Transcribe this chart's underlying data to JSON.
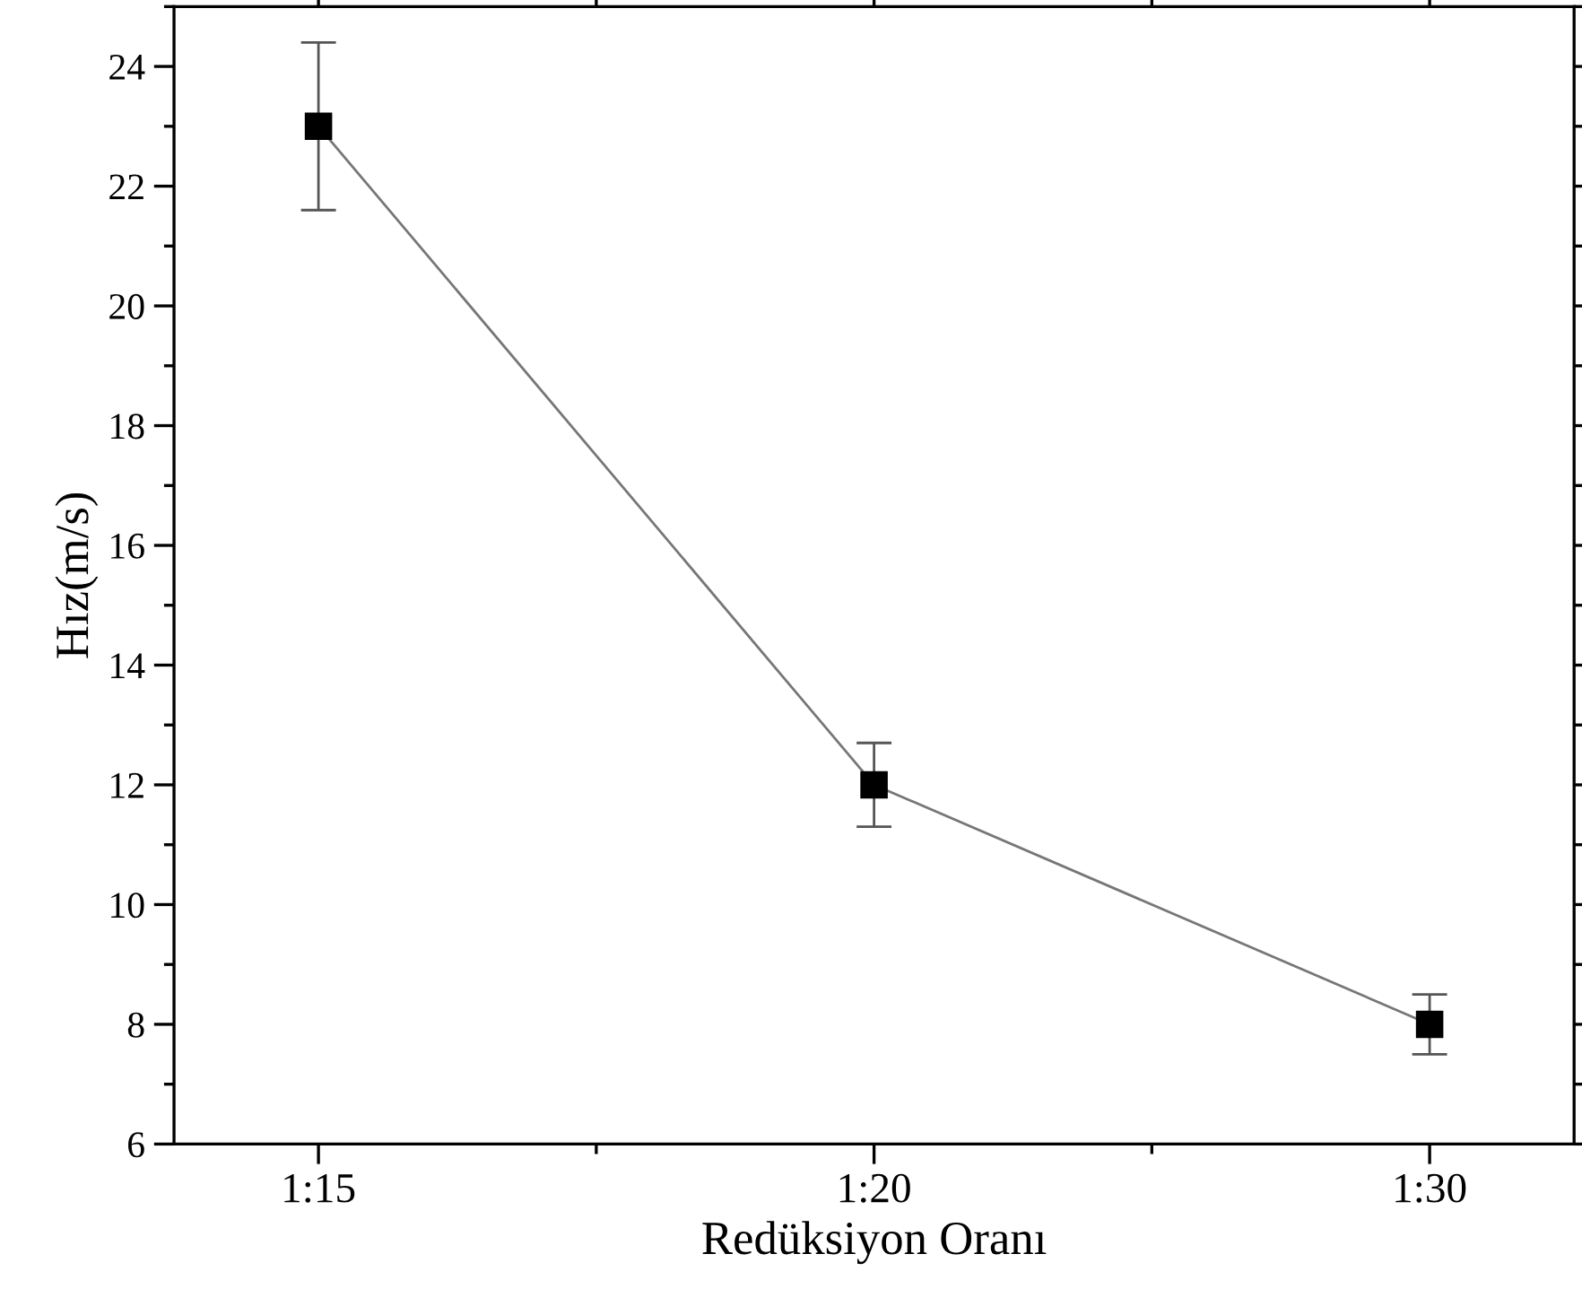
{
  "chart_data": {
    "type": "line",
    "xlabel": "Redüksiyon Oranı",
    "ylabel": "Hız(m/s)",
    "categories": [
      "1:15",
      "1:20",
      "1:30"
    ],
    "series": [
      {
        "color": "#000000",
        "values": [
          23,
          12,
          8
        ],
        "errors": [
          [
            21.6,
            24.4
          ],
          [
            11.3,
            12.7
          ],
          [
            7.5,
            8.5
          ]
        ]
      }
    ],
    "ylim": [
      6,
      25
    ],
    "yticks": [
      6,
      8,
      10,
      12,
      14,
      16,
      18,
      20,
      22,
      24
    ],
    "marker": "square",
    "line_style": "solid",
    "grid": false,
    "legend": false
  }
}
